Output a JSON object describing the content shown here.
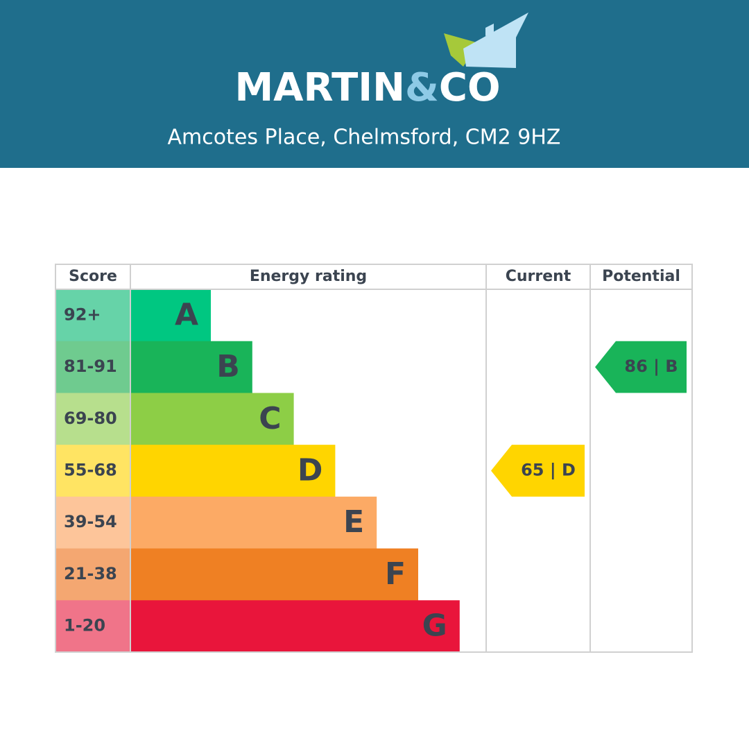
{
  "header": {
    "logo": {
      "name": "MARTIN",
      "amp": "&",
      "co": "CO"
    },
    "address": "Amcotes Place, Chelmsford, CM2 9HZ"
  },
  "table": {
    "columns": [
      "Score",
      "Energy rating",
      "Current",
      "Potential"
    ],
    "bands": [
      {
        "score": "92+",
        "letter": "A",
        "color": "#00c781",
        "light": "#66d3a8"
      },
      {
        "score": "81-91",
        "letter": "B",
        "color": "#19b459",
        "light": "#6fcb8f"
      },
      {
        "score": "69-80",
        "letter": "C",
        "color": "#8dce46",
        "light": "#b7df8d"
      },
      {
        "score": "55-68",
        "letter": "D",
        "color": "#ffd500",
        "light": "#ffe463"
      },
      {
        "score": "39-54",
        "letter": "E",
        "color": "#fcaa65",
        "light": "#fdc59a"
      },
      {
        "score": "21-38",
        "letter": "F",
        "color": "#ef8023",
        "light": "#f4a771"
      },
      {
        "score": "1-20",
        "letter": "G",
        "color": "#e9153b",
        "light": "#f07489"
      }
    ],
    "current": {
      "label": "65 | D",
      "band": 3
    },
    "potential": {
      "label": "86 | B",
      "band": 1
    }
  }
}
